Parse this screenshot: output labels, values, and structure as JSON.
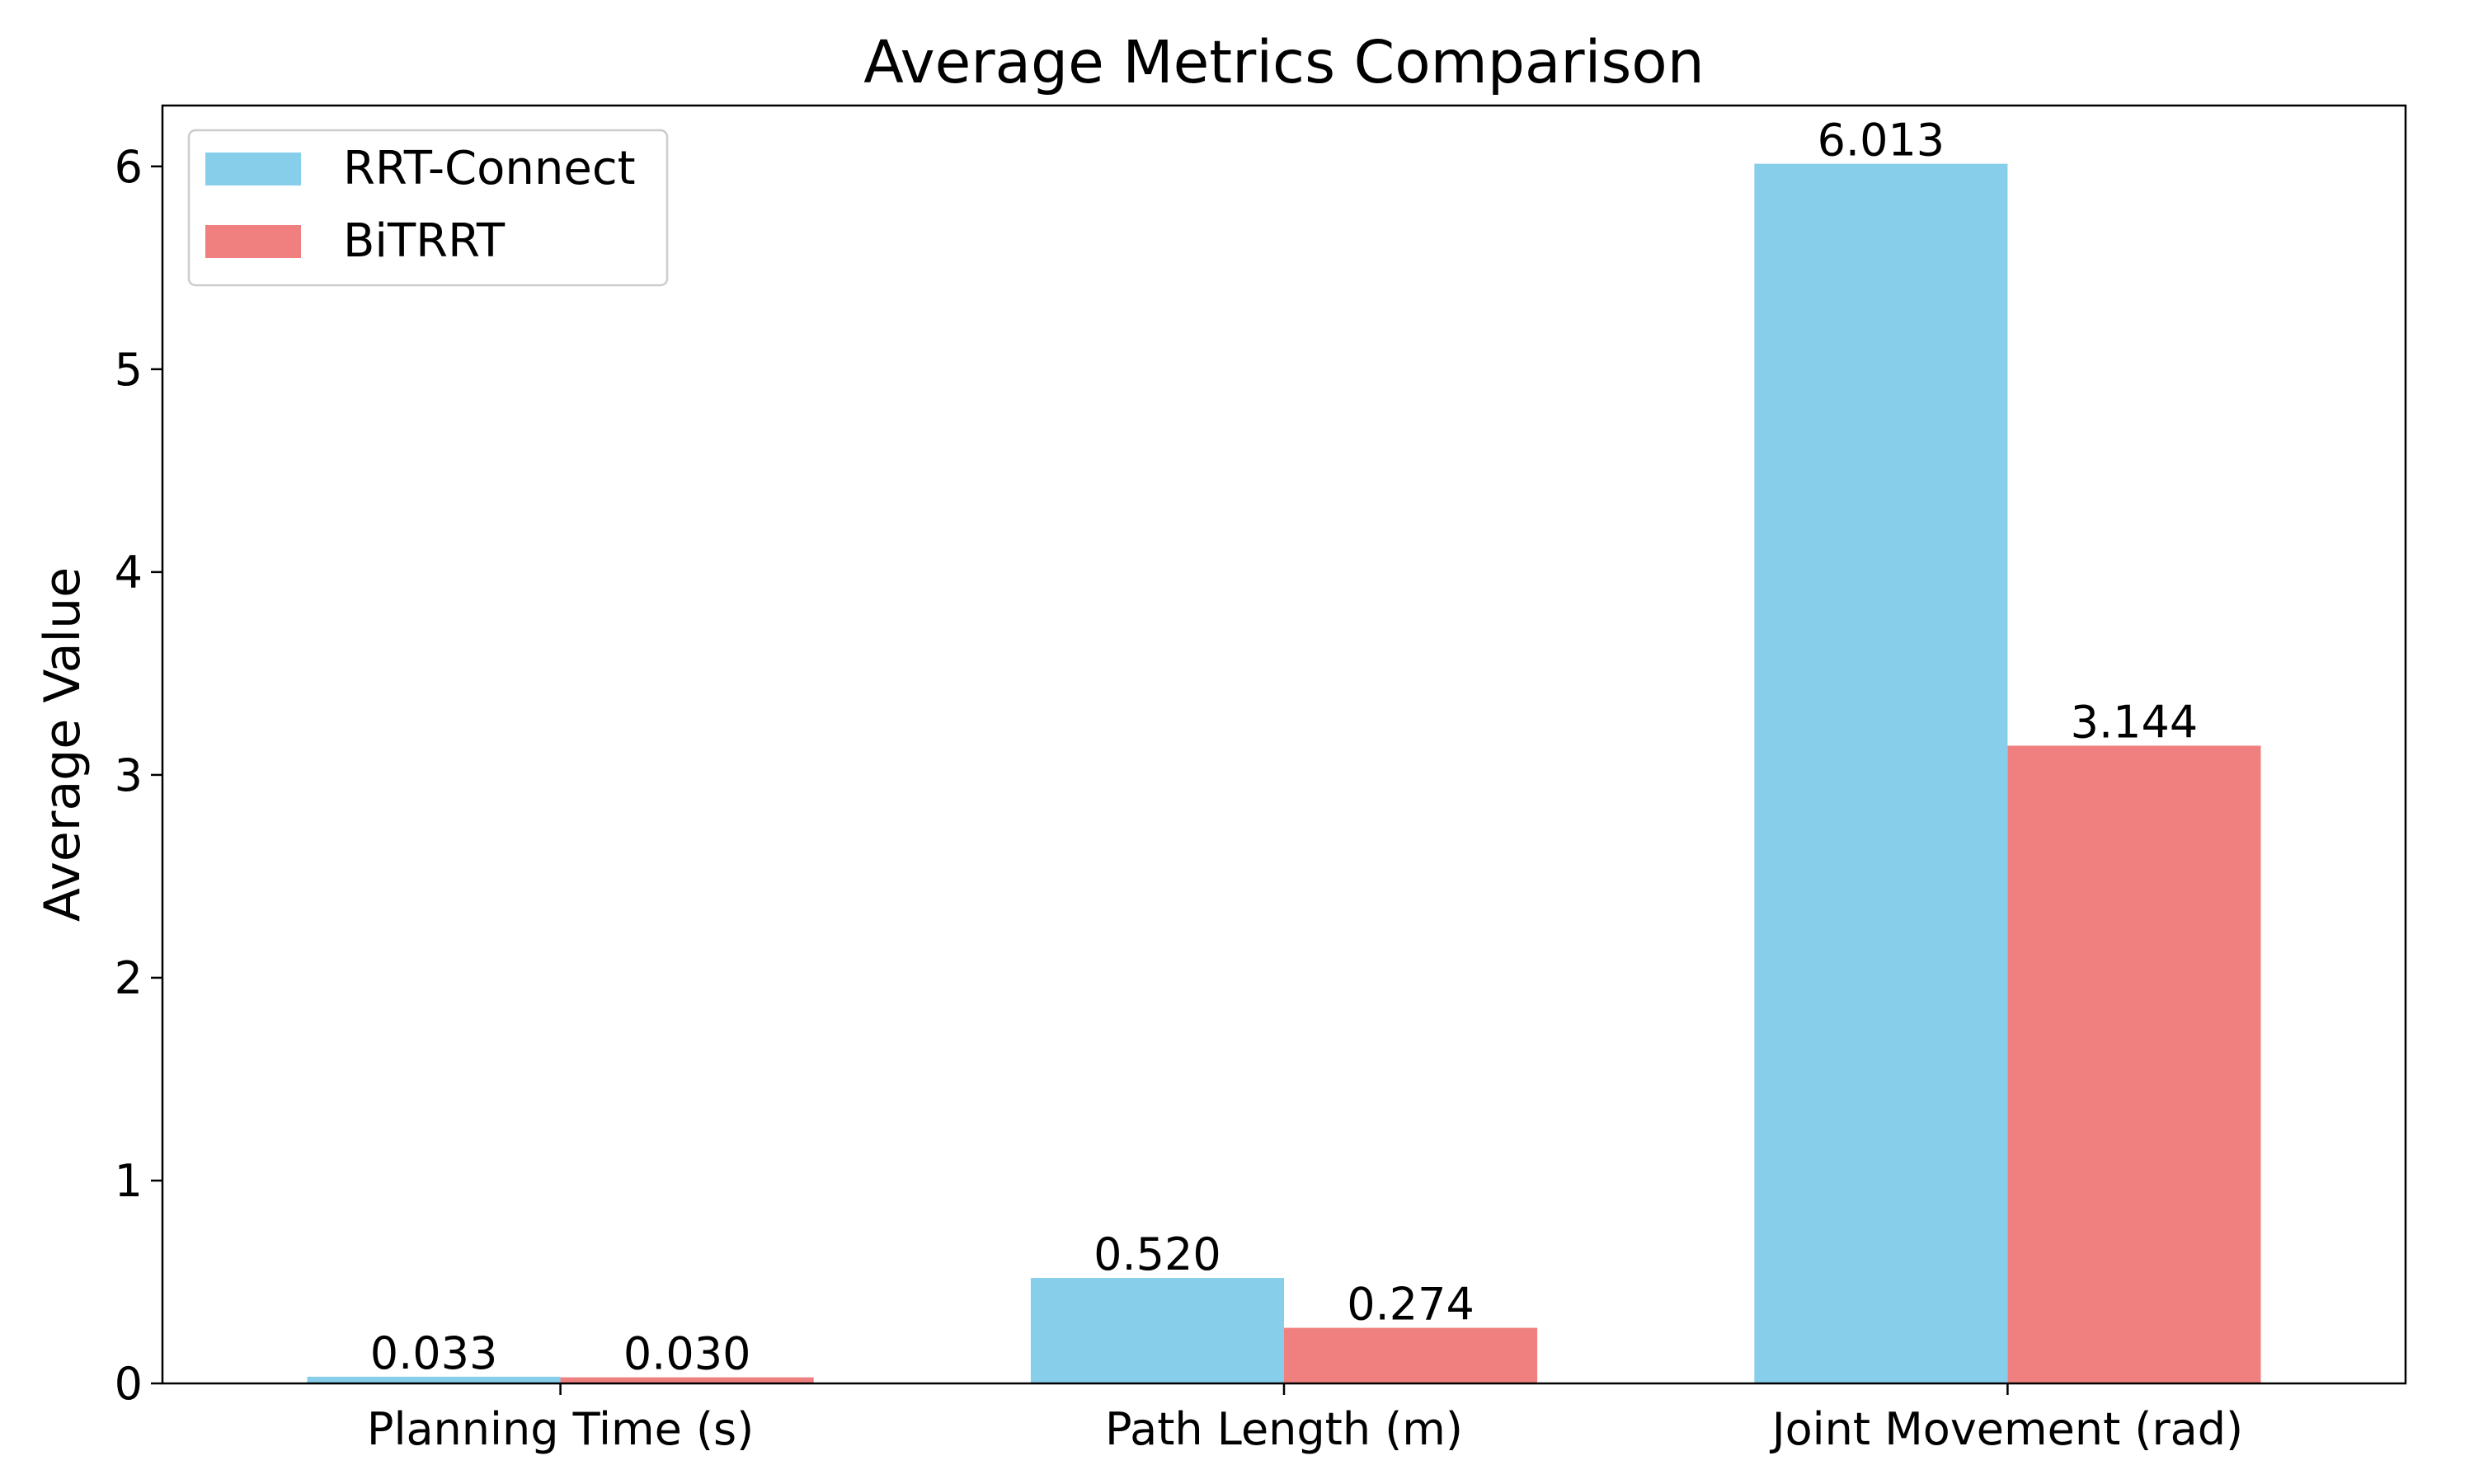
{
  "chart_data": {
    "type": "bar",
    "title": "Average Metrics Comparison",
    "xlabel": "",
    "ylabel": "Average Value",
    "categories": [
      "Planning Time (s)",
      "Path Length (m)",
      "Joint Movement (rad)"
    ],
    "series": [
      {
        "name": "RRT-Connect",
        "color": "#87CEEB",
        "values": [
          0.033,
          0.52,
          6.013
        ],
        "labels": [
          "0.033",
          "0.520",
          "6.013"
        ]
      },
      {
        "name": "BiTRRT",
        "color": "#F08080",
        "values": [
          0.03,
          0.274,
          3.144
        ],
        "labels": [
          "0.030",
          "0.274",
          "3.144"
        ]
      }
    ],
    "ylim": [
      0,
      6.3
    ],
    "yticks": [
      0,
      1,
      2,
      3,
      4,
      5,
      6
    ],
    "ytick_labels": [
      "0",
      "1",
      "2",
      "3",
      "4",
      "5",
      "6"
    ],
    "grid": false,
    "legend_position": "top-left"
  }
}
